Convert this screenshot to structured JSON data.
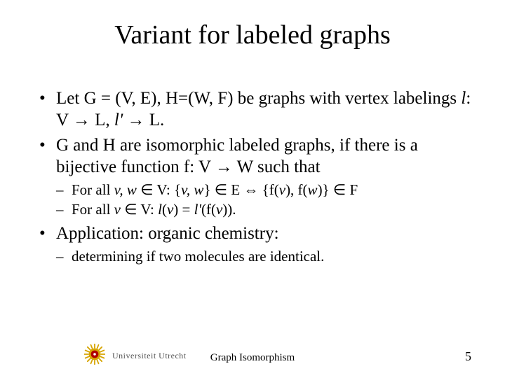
{
  "title": {
    "text": "Variant for labeled graphs",
    "fontsize": 38,
    "weight": "normal",
    "color": "#000000"
  },
  "body_fontsize_l1": 25,
  "body_fontsize_l2": 21,
  "line_height_l1": 1.22,
  "line_height_l2": 1.25,
  "bullets": [
    {
      "runs": [
        {
          "t": "Let G = (V, E), H=(W, F) be graphs with vertex labelings "
        },
        {
          "t": "l",
          "i": true
        },
        {
          "t": ": V "
        },
        {
          "t": "→",
          "sym": true
        },
        {
          "t": " L, "
        },
        {
          "t": "l'",
          "i": true
        },
        {
          "t": " "
        },
        {
          "t": "→",
          "sym": true
        },
        {
          "t": " L."
        }
      ],
      "sub": []
    },
    {
      "runs": [
        {
          "t": "G and H are isomorphic labeled graphs, if there is a bijective function f: V "
        },
        {
          "t": "→",
          "sym": true
        },
        {
          "t": " W such that"
        }
      ],
      "sub": [
        {
          "runs": [
            {
              "t": "For all "
            },
            {
              "t": "v, w ",
              "i": true
            },
            {
              "t": "∈",
              "sym": true
            },
            {
              "t": " V: {"
            },
            {
              "t": "v, w",
              "i": true
            },
            {
              "t": "} "
            },
            {
              "t": "∈",
              "sym": true
            },
            {
              "t": " E "
            },
            {
              "t": "⇔",
              "sym": true
            },
            {
              "t": " {f("
            },
            {
              "t": "v",
              "i": true
            },
            {
              "t": "), f("
            },
            {
              "t": "w",
              "i": true
            },
            {
              "t": ")} "
            },
            {
              "t": "∈",
              "sym": true
            },
            {
              "t": " F"
            }
          ]
        },
        {
          "runs": [
            {
              "t": "For all "
            },
            {
              "t": "v ",
              "i": true
            },
            {
              "t": "∈",
              "sym": true
            },
            {
              "t": " V: "
            },
            {
              "t": "l",
              "i": true
            },
            {
              "t": "("
            },
            {
              "t": "v",
              "i": true
            },
            {
              "t": ") = "
            },
            {
              "t": "l'",
              "i": true
            },
            {
              "t": "(f("
            },
            {
              "t": "v",
              "i": true
            },
            {
              "t": "))."
            }
          ]
        }
      ]
    },
    {
      "runs": [
        {
          "t": "Application: organic chemistry:"
        }
      ],
      "sub": [
        {
          "runs": [
            {
              "t": "determining if two molecules are identical."
            }
          ]
        }
      ]
    }
  ],
  "footer": {
    "uni": "Universiteit Utrecht",
    "uni_fontsize": 12,
    "uni_color": "#555555",
    "center": "Graph Isomorphism",
    "center_fontsize": 15,
    "page": "5",
    "page_fontsize": 18,
    "logo": {
      "outer": "#d6a400",
      "inner": "#b00000",
      "center": "#ffffff",
      "size": 30
    }
  }
}
